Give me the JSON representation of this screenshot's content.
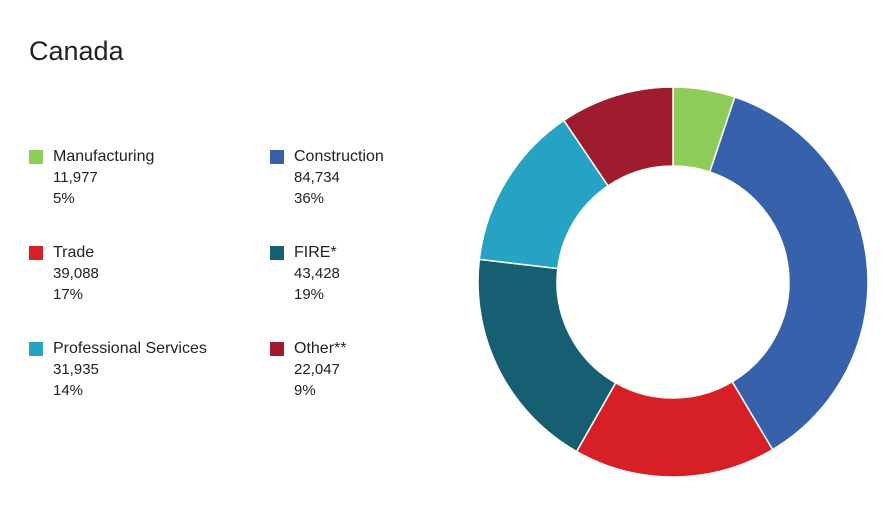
{
  "title": "Canada",
  "chart_data": {
    "type": "pie",
    "donut": true,
    "title": "Canada",
    "legend_position": "left",
    "slices": [
      {
        "label": "Manufacturing",
        "value": 11977,
        "value_text": "11,977",
        "percent_text": "5%",
        "color": "#8fcd5b"
      },
      {
        "label": "Construction",
        "value": 84734,
        "value_text": "84,734",
        "percent_text": "36%",
        "color": "#3762ab"
      },
      {
        "label": "Trade",
        "value": 39088,
        "value_text": "39,088",
        "percent_text": "17%",
        "color": "#d71f26"
      },
      {
        "label": "FIRE*",
        "value": 43428,
        "value_text": "43,428",
        "percent_text": "19%",
        "color": "#165f73"
      },
      {
        "label": "Professional Services",
        "value": 31935,
        "value_text": "31,935",
        "percent_text": "14%",
        "color": "#26a3c3"
      },
      {
        "label": "Other**",
        "value": 22047,
        "value_text": "22,047",
        "percent_text": "9%",
        "color": "#9e1c2e"
      }
    ]
  }
}
